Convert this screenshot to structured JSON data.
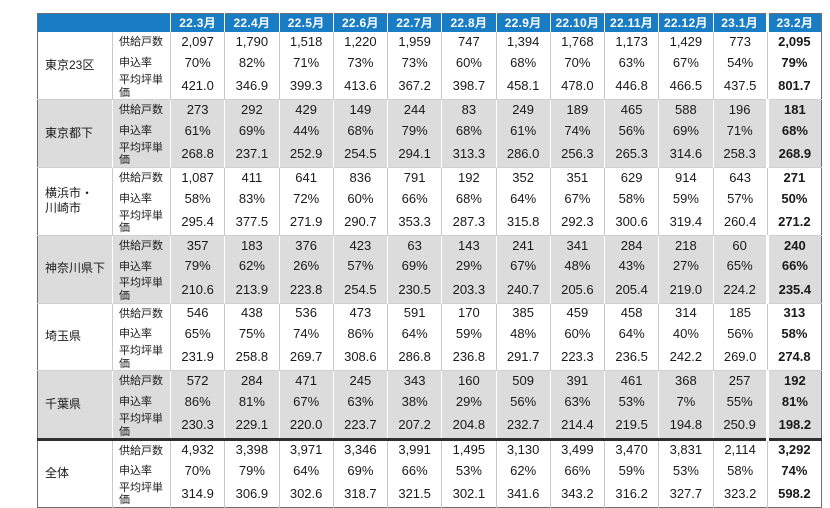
{
  "colors": {
    "header_bg": "#187dc5",
    "header_text": "#ffffff",
    "band_gray": "#dcdcdc",
    "grid_gray": "#c9c9c9",
    "thick_divider": "#2f2f2f"
  },
  "chart_data": {
    "type": "table",
    "title": "",
    "months": [
      "22.3月",
      "22.4月",
      "22.5月",
      "22.6月",
      "22.7月",
      "22.8月",
      "22.9月",
      "22.10月",
      "22.11月",
      "22.12月",
      "23.1月",
      "23.2月"
    ],
    "metrics": [
      "供給戸数",
      "申込率",
      "平均坪単価"
    ],
    "layout_hints": {
      "banding": "groups alternate white/gray starting white",
      "last_column": "bold, separated by thicker white rule",
      "total_row_divider": "thick dark rule above 全体 group"
    },
    "regions": [
      {
        "name": "東京23区",
        "rows": [
          [
            "2,097",
            "1,790",
            "1,518",
            "1,220",
            "1,959",
            "747",
            "1,394",
            "1,768",
            "1,173",
            "1,429",
            "773",
            "2,095"
          ],
          [
            "70%",
            "82%",
            "71%",
            "73%",
            "73%",
            "60%",
            "68%",
            "70%",
            "63%",
            "67%",
            "54%",
            "79%"
          ],
          [
            "421.0",
            "346.9",
            "399.3",
            "413.6",
            "367.2",
            "398.7",
            "458.1",
            "478.0",
            "446.8",
            "466.5",
            "437.5",
            "801.7"
          ]
        ]
      },
      {
        "name": "東京都下",
        "rows": [
          [
            "273",
            "292",
            "429",
            "149",
            "244",
            "83",
            "249",
            "189",
            "465",
            "588",
            "196",
            "181"
          ],
          [
            "61%",
            "69%",
            "44%",
            "68%",
            "79%",
            "68%",
            "61%",
            "74%",
            "56%",
            "69%",
            "71%",
            "68%"
          ],
          [
            "268.8",
            "237.1",
            "252.9",
            "254.5",
            "294.1",
            "313.3",
            "286.0",
            "256.3",
            "265.3",
            "314.6",
            "258.3",
            "268.9"
          ]
        ]
      },
      {
        "name": "横浜市・\n川崎市",
        "rows": [
          [
            "1,087",
            "411",
            "641",
            "836",
            "791",
            "192",
            "352",
            "351",
            "629",
            "914",
            "643",
            "271"
          ],
          [
            "58%",
            "83%",
            "72%",
            "60%",
            "66%",
            "68%",
            "64%",
            "67%",
            "58%",
            "59%",
            "57%",
            "50%"
          ],
          [
            "295.4",
            "377.5",
            "271.9",
            "290.7",
            "353.3",
            "287.3",
            "315.8",
            "292.3",
            "300.6",
            "319.4",
            "260.4",
            "271.2"
          ]
        ]
      },
      {
        "name": "神奈川県下",
        "rows": [
          [
            "357",
            "183",
            "376",
            "423",
            "63",
            "143",
            "241",
            "341",
            "284",
            "218",
            "60",
            "240"
          ],
          [
            "79%",
            "62%",
            "26%",
            "57%",
            "69%",
            "29%",
            "67%",
            "48%",
            "43%",
            "27%",
            "65%",
            "66%"
          ],
          [
            "210.6",
            "213.9",
            "223.8",
            "254.5",
            "230.5",
            "203.3",
            "240.7",
            "205.6",
            "205.4",
            "219.0",
            "224.2",
            "235.4"
          ]
        ]
      },
      {
        "name": "埼玉県",
        "rows": [
          [
            "546",
            "438",
            "536",
            "473",
            "591",
            "170",
            "385",
            "459",
            "458",
            "314",
            "185",
            "313"
          ],
          [
            "65%",
            "75%",
            "74%",
            "86%",
            "64%",
            "59%",
            "48%",
            "60%",
            "64%",
            "40%",
            "56%",
            "58%"
          ],
          [
            "231.9",
            "258.8",
            "269.7",
            "308.6",
            "286.8",
            "236.8",
            "291.7",
            "223.3",
            "236.5",
            "242.2",
            "269.0",
            "274.8"
          ]
        ]
      },
      {
        "name": "千葉県",
        "rows": [
          [
            "572",
            "284",
            "471",
            "245",
            "343",
            "160",
            "509",
            "391",
            "461",
            "368",
            "257",
            "192"
          ],
          [
            "86%",
            "81%",
            "67%",
            "63%",
            "38%",
            "29%",
            "56%",
            "63%",
            "53%",
            "7%",
            "55%",
            "81%"
          ],
          [
            "230.3",
            "229.1",
            "220.0",
            "223.7",
            "207.2",
            "204.8",
            "232.7",
            "214.4",
            "219.5",
            "194.8",
            "250.9",
            "198.2"
          ]
        ]
      },
      {
        "name": "全体",
        "rows": [
          [
            "4,932",
            "3,398",
            "3,971",
            "3,346",
            "3,991",
            "1,495",
            "3,130",
            "3,499",
            "3,470",
            "3,831",
            "2,114",
            "3,292"
          ],
          [
            "70%",
            "79%",
            "64%",
            "69%",
            "66%",
            "53%",
            "62%",
            "66%",
            "59%",
            "53%",
            "58%",
            "74%"
          ],
          [
            "314.9",
            "306.9",
            "302.6",
            "318.7",
            "321.5",
            "302.1",
            "341.6",
            "343.2",
            "316.2",
            "327.7",
            "323.2",
            "598.2"
          ]
        ]
      }
    ]
  }
}
